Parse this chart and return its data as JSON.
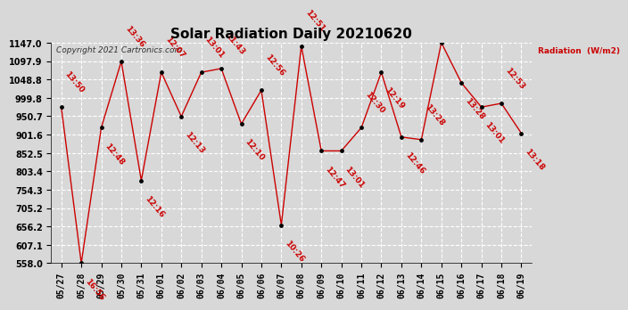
{
  "title": "Solar Radiation Daily 20210620",
  "copyright": "Copyright 2021 Cartronics.com",
  "ylabel": "Radiation  (W/m2)",
  "ylim": [
    558.0,
    1147.0
  ],
  "yticks": [
    558.0,
    607.1,
    656.2,
    705.2,
    754.3,
    803.4,
    852.5,
    901.6,
    950.7,
    999.8,
    1048.8,
    1097.9,
    1147.0
  ],
  "dates": [
    "05/27",
    "05/28",
    "05/29",
    "05/30",
    "05/31",
    "06/01",
    "06/02",
    "06/03",
    "06/04",
    "06/05",
    "06/06",
    "06/07",
    "06/08",
    "06/09",
    "06/10",
    "06/11",
    "06/12",
    "06/13",
    "06/14",
    "06/15",
    "06/16",
    "06/17",
    "06/18",
    "06/19"
  ],
  "values": [
    975,
    558,
    920,
    1097,
    779,
    1068,
    950,
    1068,
    1078,
    930,
    1020,
    660,
    1138,
    858,
    858,
    920,
    1068,
    895,
    888,
    1147,
    1040,
    975,
    985,
    905
  ],
  "labels": [
    "13:50",
    "16:56",
    "12:48",
    "13:36",
    "12:16",
    "12:07",
    "12:13",
    "13:01",
    "11:43",
    "12:10",
    "12:56",
    "10:26",
    "12:51",
    "12:47",
    "13:01",
    "12:30",
    "12:19",
    "12:46",
    "13:28",
    "",
    "13:28",
    "13:01",
    "12:53",
    "13:18"
  ],
  "line_color": "#cc0000",
  "marker_color": "#000000",
  "background_color": "#d8d8d8",
  "grid_color": "#ffffff",
  "title_fontsize": 11,
  "label_fontsize": 6.5,
  "tick_fontsize": 7,
  "copyright_fontsize": 6.5
}
